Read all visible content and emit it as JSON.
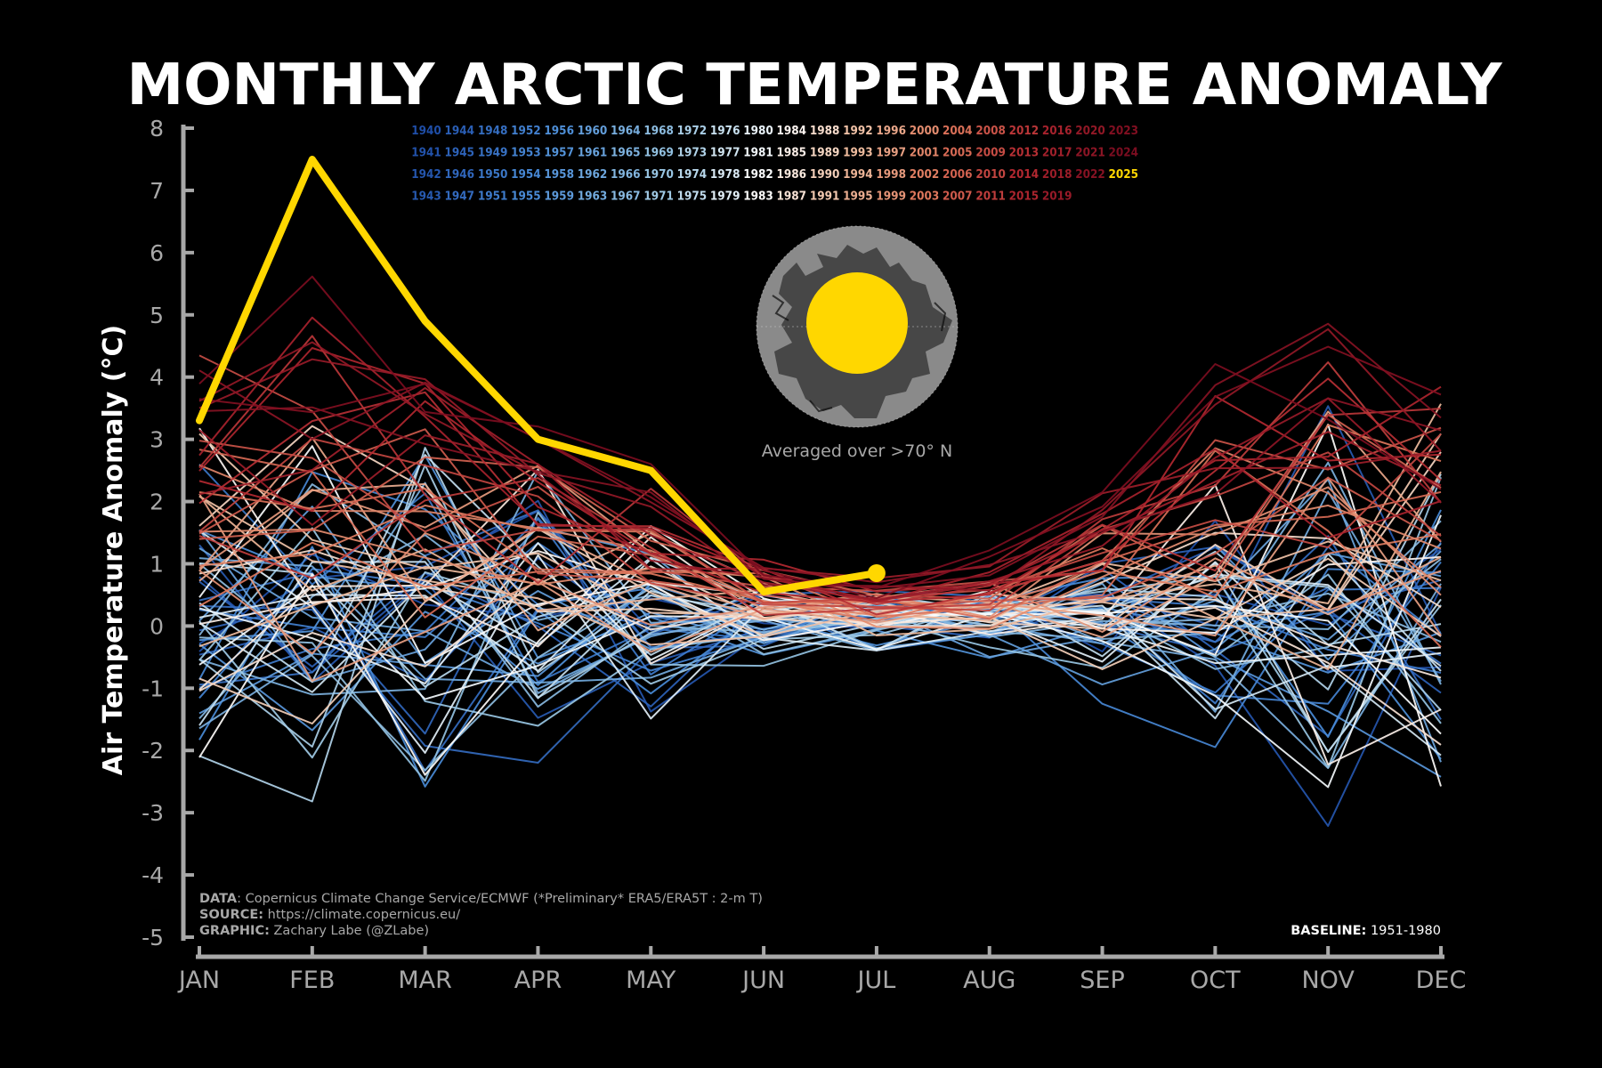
{
  "chart_data": {
    "type": "line",
    "title": "MONTHLY ARCTIC TEMPERATURE ANOMALY",
    "ylabel": "Air Temperature Anomaly (°C)",
    "xlabel": "",
    "ylim": [
      -5,
      8
    ],
    "yticks": [
      "8",
      "7",
      "6",
      "5",
      "4",
      "3",
      "2",
      "1",
      "0",
      "-1",
      "-2",
      "-3",
      "-4",
      "-5"
    ],
    "categories": [
      "JAN",
      "FEB",
      "MAR",
      "APR",
      "MAY",
      "JUN",
      "JUL",
      "AUG",
      "SEP",
      "OCT",
      "NOV",
      "DEC"
    ],
    "year_range": [
      1940,
      2025
    ],
    "highlight": {
      "name": "2025",
      "color": "#ffd700",
      "values": [
        3.3,
        7.5,
        4.9,
        3.0,
        2.5,
        0.55,
        0.85
      ]
    },
    "legend_years": [
      [
        "1940",
        "1944",
        "1948",
        "1952",
        "1956",
        "1960",
        "1964",
        "1968",
        "1972",
        "1976",
        "1980",
        "1984",
        "1988",
        "1992",
        "1996",
        "2000",
        "2004",
        "2008",
        "2012",
        "2016",
        "2020",
        "2023"
      ],
      [
        "1941",
        "1945",
        "1949",
        "1953",
        "1957",
        "1961",
        "1965",
        "1969",
        "1973",
        "1977",
        "1981",
        "1985",
        "1989",
        "1993",
        "1997",
        "2001",
        "2005",
        "2009",
        "2013",
        "2017",
        "2021",
        "2024"
      ],
      [
        "1942",
        "1946",
        "1950",
        "1954",
        "1958",
        "1962",
        "1966",
        "1970",
        "1974",
        "1978",
        "1982",
        "1986",
        "1990",
        "1994",
        "1998",
        "2002",
        "2006",
        "2010",
        "2014",
        "2018",
        "2022",
        "2025"
      ],
      [
        "1943",
        "1947",
        "1951",
        "1955",
        "1959",
        "1963",
        "1967",
        "1971",
        "1975",
        "1979",
        "1983",
        "1987",
        "1991",
        "1995",
        "1999",
        "2003",
        "2007",
        "2011",
        "2015",
        "2019"
      ]
    ],
    "legend": "top-center",
    "grid": false
  },
  "inset": {
    "caption": "Averaged over >70° N"
  },
  "credits": {
    "data_key": "DATA",
    "data_text": ": Copernicus Climate Change Service/ECMWF (*Preliminary* ERA5/ERA5T : 2-m T)",
    "source_key": "SOURCE:",
    "source_text": " https://climate.copernicus.eu/",
    "graphic_key": "GRAPHIC:",
    "graphic_text": " Zachary Labe (@ZLabe)",
    "baseline_key": "BASELINE:",
    "baseline_text": " 1951-1980"
  },
  "colors": {
    "background": "#000000",
    "axis": "#a8a8a8",
    "highlight": "#ffd700",
    "cold": "#1f4ea8",
    "neutral": "#ffffff",
    "warm": "#8b0d1f"
  }
}
